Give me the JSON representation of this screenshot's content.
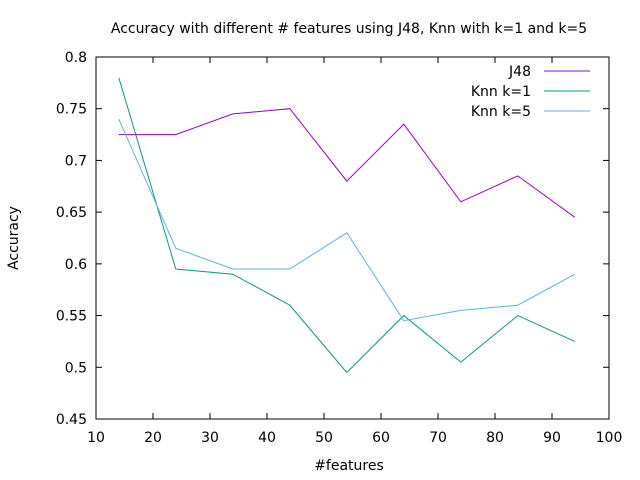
{
  "chart_data": {
    "type": "line",
    "title": "Accuracy with different # features using J48, Knn with k=1 and k=5",
    "xlabel": "#features",
    "ylabel": "Accuracy",
    "xlim": [
      10,
      100
    ],
    "ylim": [
      0.45,
      0.8
    ],
    "xticks": [
      "10",
      "20",
      "30",
      "40",
      "50",
      "60",
      "70",
      "80",
      "90",
      "100"
    ],
    "xtick_values": [
      10,
      20,
      30,
      40,
      50,
      60,
      70,
      80,
      90,
      100
    ],
    "yticks": [
      "0.45",
      "0.5",
      "0.55",
      "0.6",
      "0.65",
      "0.7",
      "0.75",
      "0.8"
    ],
    "ytick_values": [
      0.45,
      0.5,
      0.55,
      0.6,
      0.65,
      0.7,
      0.75,
      0.8
    ],
    "grid": false,
    "legend_position": "top-right",
    "x": [
      14,
      24,
      34,
      44,
      54,
      64,
      74,
      84,
      94
    ],
    "series": [
      {
        "name": "J48",
        "color": "#9400d3",
        "values": [
          0.725,
          0.725,
          0.745,
          0.75,
          0.68,
          0.735,
          0.66,
          0.685,
          0.645
        ]
      },
      {
        "name": "Knn k=1",
        "color": "#009e73",
        "values": [
          0.78,
          0.595,
          0.59,
          0.56,
          0.495,
          0.55,
          0.505,
          0.55,
          0.525
        ]
      },
      {
        "name": "Knn k=5",
        "color": "#56b4e9",
        "values": [
          0.74,
          0.615,
          0.595,
          0.595,
          0.63,
          0.545,
          0.555,
          0.56,
          0.59
        ]
      }
    ]
  }
}
